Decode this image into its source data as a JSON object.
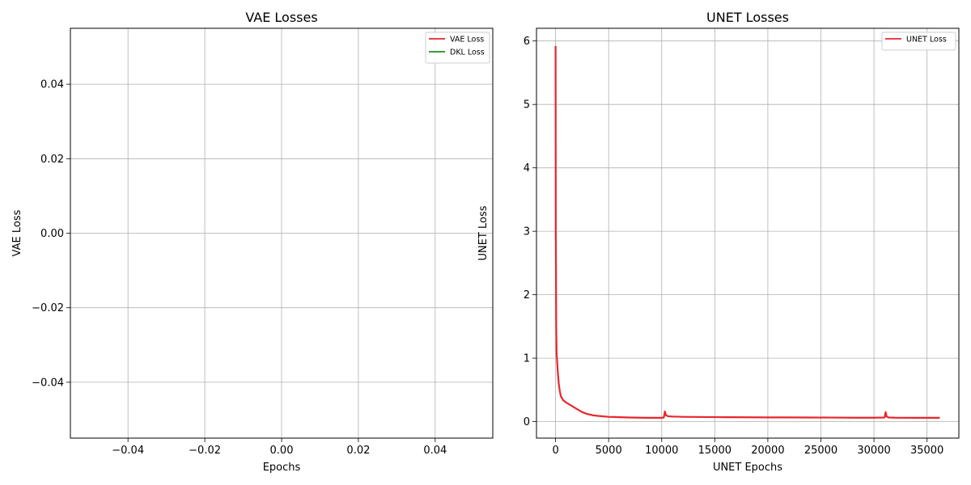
{
  "chart_data": [
    {
      "type": "line",
      "title": "VAE Losses",
      "xlabel": "Epochs",
      "ylabel": "VAE Loss",
      "xlim": [
        -0.055,
        0.055
      ],
      "ylim": [
        -0.055,
        0.055
      ],
      "xticks": [
        -0.04,
        -0.02,
        0.0,
        0.02,
        0.04
      ],
      "yticks": [
        -0.04,
        -0.02,
        0.0,
        0.02,
        0.04
      ],
      "xtick_labels": [
        "−0.04",
        "−0.02",
        "0.00",
        "0.02",
        "0.04"
      ],
      "ytick_labels": [
        "−0.04",
        "−0.02",
        "0.00",
        "0.02",
        "0.04"
      ],
      "grid": true,
      "legend_position": "top-right",
      "series": [
        {
          "name": "VAE Loss",
          "color": "#e8262b",
          "x": [],
          "y": []
        },
        {
          "name": "DKL Loss",
          "color": "#1f8a1f",
          "x": [],
          "y": []
        }
      ]
    },
    {
      "type": "line",
      "title": "UNET Losses",
      "xlabel": "UNET Epochs",
      "ylabel": "UNET Loss",
      "xlim": [
        -1800,
        38000
      ],
      "ylim": [
        -0.26,
        6.2
      ],
      "xticks": [
        0,
        5000,
        10000,
        15000,
        20000,
        25000,
        30000,
        35000
      ],
      "yticks": [
        0,
        1,
        2,
        3,
        4,
        5,
        6
      ],
      "xtick_labels": [
        "0",
        "5000",
        "10000",
        "15000",
        "20000",
        "25000",
        "30000",
        "35000"
      ],
      "ytick_labels": [
        "0",
        "1",
        "2",
        "3",
        "4",
        "5",
        "6"
      ],
      "grid": true,
      "legend_position": "top-right",
      "series": [
        {
          "name": "UNET Loss",
          "color": "#e8262b",
          "x": [
            0,
            20,
            60,
            100,
            150,
            200,
            300,
            400,
            500,
            700,
            1000,
            1500,
            2000,
            2500,
            3000,
            3500,
            4000,
            5000,
            6000,
            7000,
            8000,
            9000,
            10000,
            10200,
            10300,
            10400,
            10600,
            11000,
            12000,
            14000,
            16000,
            18000,
            20000,
            22000,
            24000,
            26000,
            28000,
            30000,
            31000,
            31100,
            31200,
            31400,
            32000,
            34000,
            36200
          ],
          "y": [
            5.92,
            3.0,
            1.5,
            1.05,
            0.95,
            0.8,
            0.6,
            0.48,
            0.4,
            0.34,
            0.3,
            0.25,
            0.2,
            0.15,
            0.12,
            0.1,
            0.09,
            0.075,
            0.07,
            0.065,
            0.062,
            0.06,
            0.06,
            0.065,
            0.16,
            0.1,
            0.085,
            0.08,
            0.075,
            0.072,
            0.07,
            0.068,
            0.067,
            0.066,
            0.065,
            0.064,
            0.062,
            0.062,
            0.065,
            0.15,
            0.08,
            0.065,
            0.062,
            0.06,
            0.06
          ]
        }
      ]
    }
  ]
}
